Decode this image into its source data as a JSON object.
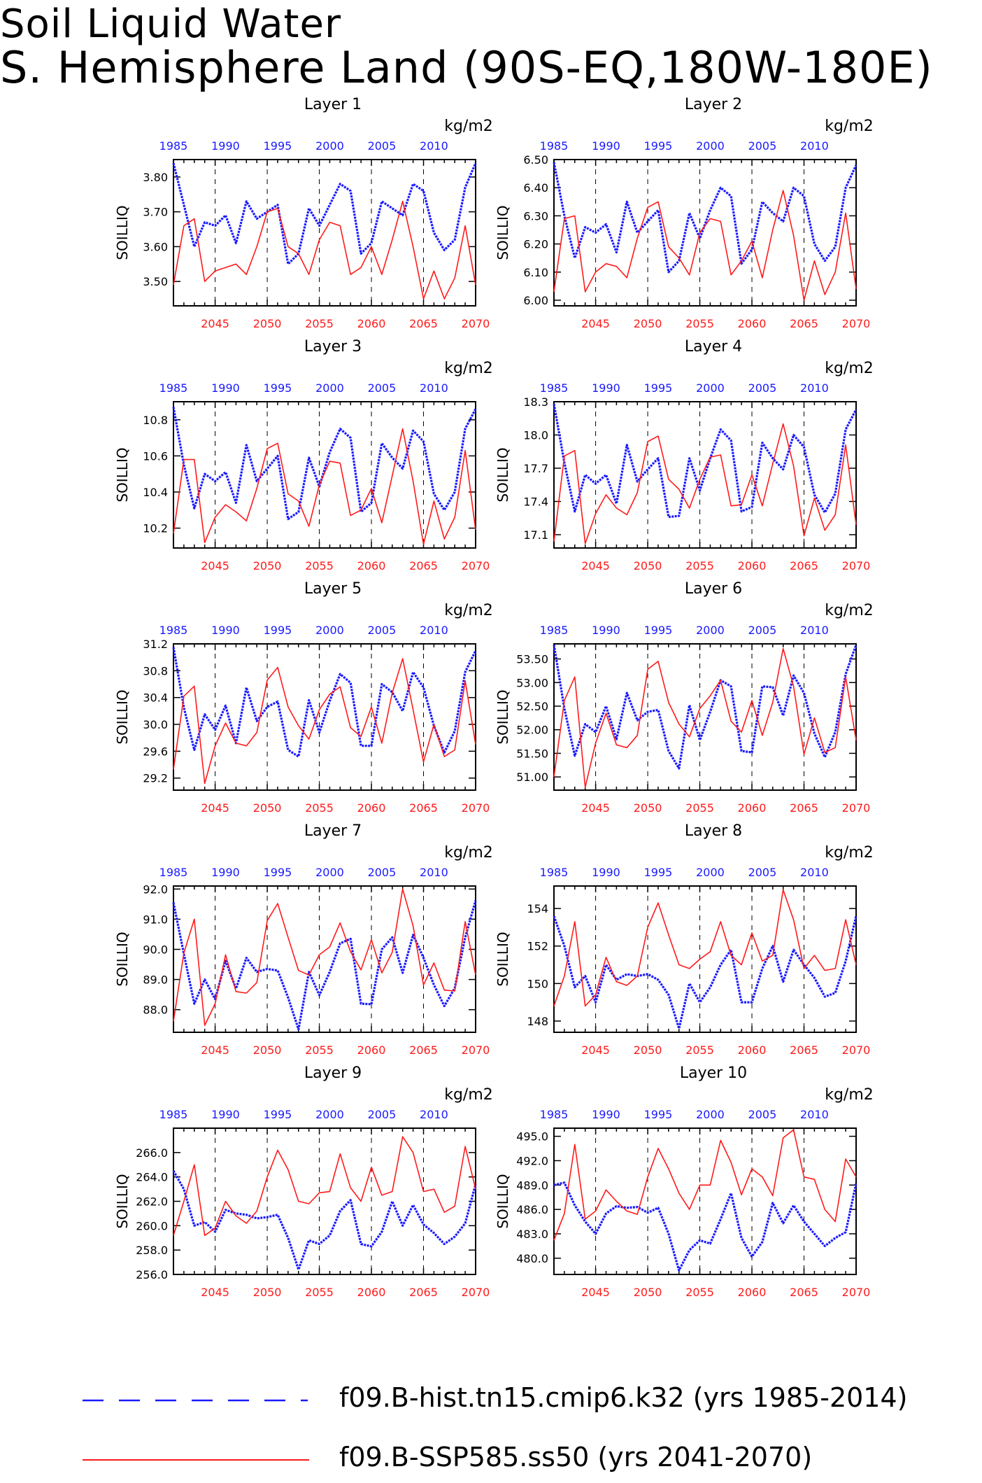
{
  "page": {
    "title_line1": "Soil Liquid Water",
    "title_line2": "S. Hemisphere Land (90S-EQ,180W-180E)"
  },
  "legend": {
    "hist_label": "f09.B-hist.tn15.cmip6.k32 (yrs 1985-2014)",
    "ssp_label": "f09.B-SSP585.ss50 (yrs 2041-2070)",
    "hist_color": "#1a1aff",
    "ssp_color": "#ff1a1a"
  },
  "chart_data": [
    {
      "type": "line",
      "title": "Layer 1",
      "units": "kg/m2",
      "ylabel": "SOILLIQ",
      "ylim": [
        3.43,
        3.85
      ],
      "yticks": [
        "3.50",
        "3.60",
        "3.70",
        "3.80"
      ],
      "top_axis_ticks": [
        "1985",
        "1990",
        "1995",
        "2000",
        "2005",
        "2010"
      ],
      "bottom_axis_ticks": [
        "2045",
        "2050",
        "2055",
        "2060",
        "2065",
        "2070"
      ],
      "series": [
        {
          "name": "f09.B-hist.tn15.cmip6.k32",
          "x_start": 1985,
          "values": [
            3.84,
            3.72,
            3.6,
            3.67,
            3.66,
            3.69,
            3.61,
            3.73,
            3.68,
            3.7,
            3.72,
            3.55,
            3.58,
            3.71,
            3.66,
            3.72,
            3.78,
            3.76,
            3.58,
            3.61,
            3.73,
            3.71,
            3.69,
            3.78,
            3.76,
            3.64,
            3.59,
            3.62,
            3.77,
            3.84
          ]
        },
        {
          "name": "f09.B-SSP585.ss50",
          "x_start": 2041,
          "values": [
            3.49,
            3.66,
            3.68,
            3.5,
            3.53,
            3.54,
            3.55,
            3.52,
            3.6,
            3.7,
            3.71,
            3.6,
            3.58,
            3.52,
            3.62,
            3.67,
            3.66,
            3.52,
            3.54,
            3.6,
            3.52,
            3.62,
            3.73,
            3.6,
            3.45,
            3.53,
            3.45,
            3.51,
            3.66,
            3.49
          ]
        }
      ]
    },
    {
      "type": "line",
      "title": "Layer 2",
      "units": "kg/m2",
      "ylabel": "SOILLIQ",
      "ylim": [
        5.98,
        6.5
      ],
      "yticks": [
        "6.00",
        "6.10",
        "6.20",
        "6.30",
        "6.40",
        "6.50"
      ],
      "top_axis_ticks": [
        "1985",
        "1990",
        "1995",
        "2000",
        "2005",
        "2010"
      ],
      "bottom_axis_ticks": [
        "2045",
        "2050",
        "2055",
        "2060",
        "2065",
        "2070"
      ],
      "series": [
        {
          "name": "f09.B-hist.tn15.cmip6.k32",
          "x_start": 1985,
          "values": [
            6.49,
            6.3,
            6.15,
            6.26,
            6.24,
            6.27,
            6.17,
            6.35,
            6.24,
            6.28,
            6.32,
            6.1,
            6.14,
            6.31,
            6.22,
            6.32,
            6.4,
            6.37,
            6.13,
            6.18,
            6.35,
            6.31,
            6.28,
            6.4,
            6.37,
            6.2,
            6.14,
            6.19,
            6.4,
            6.48
          ]
        },
        {
          "name": "f09.B-SSP585.ss50",
          "x_start": 2041,
          "values": [
            6.03,
            6.29,
            6.3,
            6.03,
            6.1,
            6.13,
            6.12,
            6.08,
            6.22,
            6.33,
            6.35,
            6.19,
            6.15,
            6.09,
            6.24,
            6.29,
            6.28,
            6.09,
            6.14,
            6.21,
            6.08,
            6.25,
            6.39,
            6.23,
            6.0,
            6.14,
            6.02,
            6.1,
            6.31,
            6.04
          ]
        }
      ]
    },
    {
      "type": "line",
      "title": "Layer 3",
      "units": "kg/m2",
      "ylabel": "SOILLIQ",
      "ylim": [
        10.09,
        10.9
      ],
      "yticks": [
        "10.2",
        "10.4",
        "10.6",
        "10.8"
      ],
      "top_axis_ticks": [
        "1985",
        "1990",
        "1995",
        "2000",
        "2005",
        "2010"
      ],
      "bottom_axis_ticks": [
        "2045",
        "2050",
        "2055",
        "2060",
        "2065",
        "2070"
      ],
      "series": [
        {
          "name": "f09.B-hist.tn15.cmip6.k32",
          "x_start": 1985,
          "values": [
            10.87,
            10.55,
            10.31,
            10.5,
            10.46,
            10.51,
            10.34,
            10.66,
            10.46,
            10.53,
            10.6,
            10.25,
            10.29,
            10.59,
            10.43,
            10.62,
            10.75,
            10.7,
            10.29,
            10.34,
            10.67,
            10.59,
            10.53,
            10.74,
            10.68,
            10.39,
            10.3,
            10.4,
            10.75,
            10.86
          ]
        },
        {
          "name": "f09.B-SSP585.ss50",
          "x_start": 2041,
          "values": [
            10.17,
            10.58,
            10.58,
            10.12,
            10.26,
            10.33,
            10.29,
            10.24,
            10.42,
            10.64,
            10.67,
            10.39,
            10.35,
            10.21,
            10.44,
            10.57,
            10.56,
            10.27,
            10.3,
            10.42,
            10.23,
            10.49,
            10.75,
            10.46,
            10.11,
            10.35,
            10.14,
            10.26,
            10.63,
            10.19
          ]
        }
      ]
    },
    {
      "type": "line",
      "title": "Layer 4",
      "units": "kg/m2",
      "ylabel": "SOILLIQ",
      "ylim": [
        16.98,
        18.3
      ],
      "yticks": [
        "17.1",
        "17.4",
        "17.7",
        "18.0",
        "18.3"
      ],
      "top_axis_ticks": [
        "1985",
        "1990",
        "1995",
        "2000",
        "2005",
        "2010"
      ],
      "bottom_axis_ticks": [
        "2045",
        "2050",
        "2055",
        "2060",
        "2065",
        "2070"
      ],
      "series": [
        {
          "name": "f09.B-hist.tn15.cmip6.k32",
          "x_start": 1985,
          "values": [
            18.28,
            17.75,
            17.31,
            17.64,
            17.56,
            17.64,
            17.38,
            17.91,
            17.58,
            17.69,
            17.79,
            17.26,
            17.27,
            17.79,
            17.5,
            17.79,
            18.05,
            17.95,
            17.31,
            17.35,
            17.93,
            17.79,
            17.69,
            18.0,
            17.89,
            17.46,
            17.3,
            17.47,
            18.05,
            18.23
          ]
        },
        {
          "name": "f09.B-SSP585.ss50",
          "x_start": 2041,
          "values": [
            17.04,
            17.81,
            17.86,
            17.02,
            17.29,
            17.46,
            17.34,
            17.28,
            17.48,
            17.94,
            17.99,
            17.6,
            17.51,
            17.34,
            17.6,
            17.8,
            17.82,
            17.36,
            17.37,
            17.64,
            17.36,
            17.74,
            18.1,
            17.72,
            17.09,
            17.43,
            17.14,
            17.28,
            17.91,
            17.19
          ]
        }
      ]
    },
    {
      "type": "line",
      "title": "Layer 5",
      "units": "kg/m2",
      "ylabel": "SOILLIQ",
      "ylim": [
        29.02,
        31.2
      ],
      "yticks": [
        "29.2",
        "29.6",
        "30.0",
        "30.4",
        "30.8",
        "31.2"
      ],
      "top_axis_ticks": [
        "1985",
        "1990",
        "1995",
        "2000",
        "2005",
        "2010"
      ],
      "bottom_axis_ticks": [
        "2045",
        "2050",
        "2055",
        "2060",
        "2065",
        "2070"
      ],
      "series": [
        {
          "name": "f09.B-hist.tn15.cmip6.k32",
          "x_start": 1985,
          "values": [
            31.15,
            30.25,
            29.62,
            30.15,
            29.92,
            30.28,
            29.72,
            30.55,
            30.05,
            30.26,
            30.34,
            29.62,
            29.52,
            30.36,
            29.88,
            30.35,
            30.75,
            30.62,
            29.68,
            29.68,
            30.6,
            30.48,
            30.2,
            30.78,
            30.55,
            29.98,
            29.58,
            29.9,
            30.78,
            31.1
          ]
        },
        {
          "name": "f09.B-SSP585.ss50",
          "x_start": 2041,
          "values": [
            29.33,
            30.42,
            30.57,
            29.12,
            29.68,
            30.02,
            29.72,
            29.68,
            29.88,
            30.66,
            30.85,
            30.26,
            29.98,
            29.78,
            30.22,
            30.45,
            30.56,
            29.95,
            29.82,
            30.26,
            29.72,
            30.47,
            30.98,
            30.22,
            29.44,
            30.0,
            29.52,
            29.62,
            30.65,
            29.7
          ]
        }
      ]
    },
    {
      "type": "line",
      "title": "Layer 6",
      "units": "kg/m2",
      "ylabel": "SOILLIQ",
      "ylim": [
        50.72,
        53.82
      ],
      "yticks": [
        "51.00",
        "51.50",
        "52.00",
        "52.50",
        "53.00",
        "53.50"
      ],
      "top_axis_ticks": [
        "1985",
        "1990",
        "1995",
        "2000",
        "2005",
        "2010"
      ],
      "bottom_axis_ticks": [
        "2045",
        "2050",
        "2055",
        "2060",
        "2065",
        "2070"
      ],
      "series": [
        {
          "name": "f09.B-hist.tn15.cmip6.k32",
          "x_start": 1985,
          "values": [
            53.8,
            52.45,
            51.45,
            52.12,
            51.95,
            52.5,
            51.8,
            52.78,
            52.2,
            52.38,
            52.42,
            51.55,
            51.18,
            52.52,
            51.78,
            52.38,
            53.05,
            52.92,
            51.55,
            51.52,
            52.92,
            52.9,
            52.3,
            53.15,
            52.78,
            51.92,
            51.42,
            51.95,
            53.18,
            53.8
          ]
        },
        {
          "name": "f09.B-SSP585.ss50",
          "x_start": 2041,
          "values": [
            51.0,
            52.62,
            53.12,
            50.78,
            51.72,
            52.35,
            51.68,
            51.62,
            51.88,
            53.28,
            53.45,
            52.58,
            52.12,
            51.85,
            52.45,
            52.72,
            53.05,
            52.18,
            51.95,
            52.62,
            51.88,
            52.58,
            53.72,
            52.92,
            51.48,
            52.25,
            51.52,
            51.62,
            53.12,
            51.78
          ]
        }
      ]
    },
    {
      "type": "line",
      "title": "Layer 7",
      "units": "kg/m2",
      "ylabel": "SOILLIQ",
      "ylim": [
        87.25,
        92.1
      ],
      "yticks": [
        "88.0",
        "89.0",
        "90.0",
        "91.0",
        "92.0"
      ],
      "top_axis_ticks": [
        "1985",
        "1990",
        "1995",
        "2000",
        "2005",
        "2010"
      ],
      "bottom_axis_ticks": [
        "2045",
        "2050",
        "2055",
        "2060",
        "2065",
        "2070"
      ],
      "series": [
        {
          "name": "f09.B-hist.tn15.cmip6.k32",
          "x_start": 1985,
          "values": [
            91.55,
            89.85,
            88.2,
            89.0,
            88.35,
            89.62,
            88.7,
            89.72,
            89.25,
            89.35,
            89.3,
            88.4,
            87.35,
            89.25,
            88.48,
            89.25,
            90.2,
            90.35,
            88.2,
            88.18,
            90.0,
            90.4,
            89.22,
            90.48,
            89.72,
            88.82,
            88.12,
            88.72,
            90.4,
            91.62
          ]
        },
        {
          "name": "f09.B-SSP585.ss50",
          "x_start": 2041,
          "values": [
            87.62,
            89.88,
            91.0,
            87.48,
            88.2,
            89.82,
            88.6,
            88.55,
            88.9,
            90.95,
            91.52,
            90.4,
            89.3,
            89.15,
            89.82,
            90.08,
            90.88,
            89.92,
            89.32,
            90.32,
            89.22,
            89.9,
            92.0,
            90.78,
            88.82,
            89.55,
            88.65,
            88.62,
            90.92,
            89.15
          ]
        }
      ]
    },
    {
      "type": "line",
      "title": "Layer 8",
      "units": "kg/m2",
      "ylabel": "SOILLIQ",
      "ylim": [
        147.4,
        155.2
      ],
      "yticks": [
        "148",
        "150",
        "152",
        "154"
      ],
      "top_axis_ticks": [
        "1985",
        "1990",
        "1995",
        "2000",
        "2005",
        "2010"
      ],
      "bottom_axis_ticks": [
        "2045",
        "2050",
        "2055",
        "2060",
        "2065",
        "2070"
      ],
      "series": [
        {
          "name": "f09.B-hist.tn15.cmip6.k32",
          "x_start": 1985,
          "values": [
            153.6,
            152.0,
            149.8,
            150.4,
            149.0,
            151.0,
            150.2,
            150.5,
            150.4,
            150.5,
            150.2,
            149.4,
            147.6,
            150.0,
            149.0,
            149.8,
            151.0,
            151.8,
            149.0,
            149.0,
            150.8,
            152.0,
            150.1,
            151.8,
            151.0,
            150.3,
            149.3,
            149.5,
            151.2,
            153.6
          ]
        },
        {
          "name": "f09.B-SSP585.ss50",
          "x_start": 2041,
          "values": [
            148.8,
            150.4,
            153.3,
            148.8,
            149.4,
            151.4,
            150.1,
            149.9,
            150.4,
            153.0,
            154.3,
            152.6,
            151.0,
            150.8,
            151.3,
            151.7,
            153.3,
            151.5,
            151.0,
            152.7,
            151.2,
            151.5,
            155.0,
            153.4,
            150.8,
            151.5,
            150.7,
            150.8,
            153.4,
            151.0
          ]
        }
      ]
    },
    {
      "type": "line",
      "title": "Layer 9",
      "units": "kg/m2",
      "ylabel": "SOILLIQ",
      "ylim": [
        256.0,
        268.0
      ],
      "yticks": [
        "256.0",
        "258.0",
        "260.0",
        "262.0",
        "264.0",
        "266.0"
      ],
      "top_axis_ticks": [
        "1985",
        "1990",
        "1995",
        "2000",
        "2005",
        "2010"
      ],
      "bottom_axis_ticks": [
        "2045",
        "2050",
        "2055",
        "2060",
        "2065",
        "2070"
      ],
      "series": [
        {
          "name": "f09.B-hist.tn15.cmip6.k32",
          "x_start": 1985,
          "values": [
            264.5,
            263.0,
            260.0,
            260.3,
            259.5,
            261.3,
            261.0,
            260.9,
            260.6,
            260.7,
            260.9,
            259.0,
            256.4,
            258.8,
            258.5,
            259.2,
            261.2,
            262.1,
            258.5,
            258.3,
            259.5,
            262.0,
            260.0,
            261.7,
            260.1,
            259.4,
            258.5,
            259.1,
            260.2,
            263.4
          ]
        },
        {
          "name": "f09.B-SSP585.ss50",
          "x_start": 2041,
          "values": [
            259.2,
            262.0,
            265.0,
            259.2,
            259.8,
            262.0,
            260.8,
            260.2,
            261.2,
            264.0,
            266.2,
            264.6,
            262.0,
            261.8,
            262.7,
            262.8,
            265.9,
            263.1,
            262.0,
            264.8,
            262.5,
            262.8,
            267.3,
            266.0,
            262.8,
            263.0,
            261.1,
            261.6,
            266.5,
            263.0
          ]
        }
      ]
    },
    {
      "type": "line",
      "title": "Layer 10",
      "units": "kg/m2",
      "ylabel": "SOILLIQ",
      "ylim": [
        478.0,
        496.0
      ],
      "yticks": [
        "480.0",
        "483.0",
        "486.0",
        "489.0",
        "492.0",
        "495.0"
      ],
      "top_axis_ticks": [
        "1985",
        "1990",
        "1995",
        "2000",
        "2005",
        "2010"
      ],
      "bottom_axis_ticks": [
        "2045",
        "2050",
        "2055",
        "2060",
        "2065",
        "2070"
      ],
      "series": [
        {
          "name": "f09.B-hist.tn15.cmip6.k32",
          "x_start": 1985,
          "values": [
            489.0,
            489.3,
            486.5,
            484.5,
            483.0,
            485.5,
            486.4,
            486.2,
            486.3,
            485.6,
            486.2,
            483.0,
            478.5,
            481.0,
            482.2,
            481.8,
            484.8,
            488.0,
            482.5,
            480.2,
            482.0,
            486.8,
            484.3,
            486.5,
            484.5,
            483.0,
            481.5,
            482.5,
            483.2,
            489.2
          ]
        },
        {
          "name": "f09.B-SSP585.ss50",
          "x_start": 2041,
          "values": [
            482.2,
            485.5,
            494.0,
            484.8,
            485.8,
            488.4,
            487.0,
            485.8,
            485.4,
            490.0,
            493.5,
            491.0,
            488.0,
            486.0,
            489.0,
            489.0,
            494.5,
            491.8,
            487.8,
            491.0,
            490.0,
            487.7,
            494.8,
            495.8,
            490.0,
            489.7,
            486.0,
            484.5,
            492.2,
            490.0
          ]
        }
      ]
    }
  ]
}
